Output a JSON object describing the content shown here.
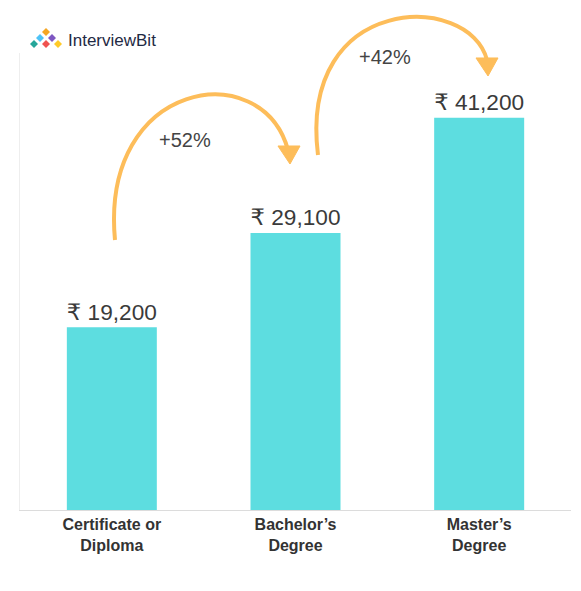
{
  "chart_data": {
    "type": "bar",
    "categories": [
      "Certificate or Diploma",
      "Bachelor’s Degree",
      "Master’s Degree"
    ],
    "values": [
      19200,
      29100,
      41200
    ],
    "value_labels": [
      "₹ 19,200",
      "₹ 29,100",
      "₹ 41,200"
    ],
    "data_labels": true,
    "color": "#5ddde0",
    "ylim": [
      0,
      48000
    ],
    "tick_labels": "x",
    "grid": false,
    "annotations": [
      "+52%",
      "+42%"
    ]
  },
  "logo": "InterviewBit"
}
